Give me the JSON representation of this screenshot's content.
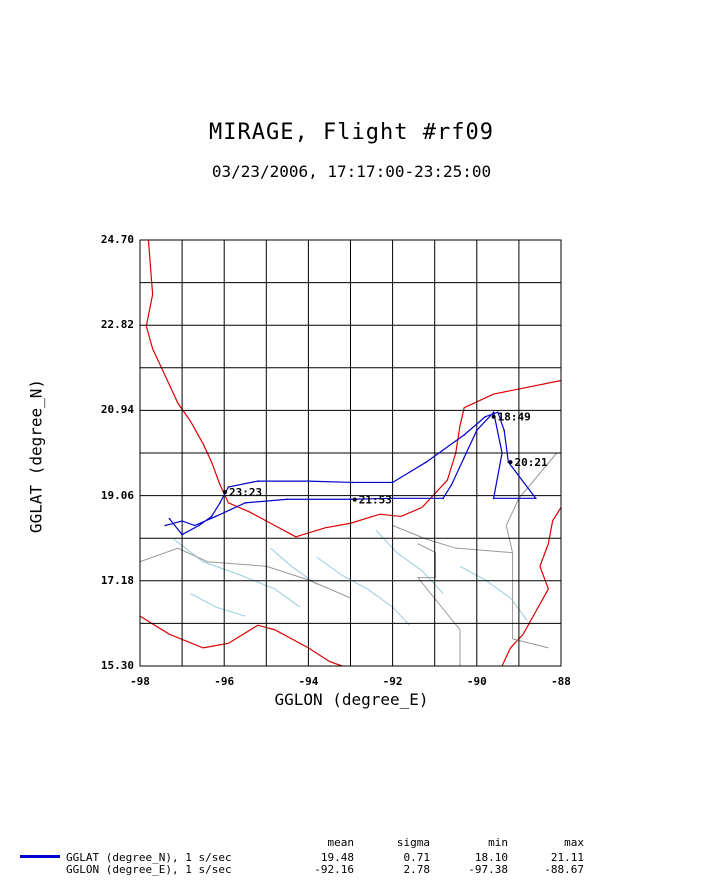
{
  "title": "MIRAGE, Flight #rf09",
  "subtitle": "03/23/2006, 17:17:00-23:25:00",
  "chart_data": {
    "type": "line",
    "xlabel": "GGLON (degree_E)",
    "ylabel": "GGLAT (degree_N)",
    "xlim": [
      -98,
      -88
    ],
    "ylim": [
      15.3,
      24.7
    ],
    "x_ticks": [
      "-98",
      "-96",
      "-94",
      "-92",
      "-90",
      "-88"
    ],
    "y_ticks": [
      "24.70",
      "22.82",
      "20.94",
      "19.06",
      "17.18",
      "15.30"
    ],
    "grid": true,
    "time_annotations": [
      {
        "label": "18:49",
        "x": -89.6,
        "y": 20.8
      },
      {
        "label": "20:21",
        "x": -89.2,
        "y": 19.8
      },
      {
        "label": "21:53",
        "x": -92.9,
        "y": 18.97
      },
      {
        "label": "23:23",
        "x": -95.98,
        "y": 19.14
      }
    ],
    "series": [
      {
        "name": "GGLAT (degree_N), 1 s/sec",
        "color": "#0000cc",
        "points": [
          [
            -97.3,
            18.55
          ],
          [
            -97.0,
            18.2
          ],
          [
            -96.6,
            18.4
          ],
          [
            -96.3,
            18.6
          ],
          [
            -96.1,
            18.9
          ],
          [
            -95.9,
            19.25
          ],
          [
            -95.2,
            19.38
          ],
          [
            -94.0,
            19.38
          ],
          [
            -92.95,
            19.35
          ],
          [
            -92.0,
            19.35
          ],
          [
            -91.2,
            19.8
          ],
          [
            -90.3,
            20.4
          ],
          [
            -89.8,
            20.8
          ],
          [
            -89.5,
            20.9
          ],
          [
            -89.35,
            20.5
          ],
          [
            -89.25,
            19.8
          ],
          [
            -88.6,
            19.0
          ],
          [
            -89.6,
            19.0
          ],
          [
            -89.4,
            20.0
          ],
          [
            -89.6,
            20.9
          ],
          [
            -90.0,
            20.5
          ],
          [
            -90.3,
            19.9
          ],
          [
            -90.6,
            19.3
          ],
          [
            -90.8,
            19.0
          ],
          [
            -92.0,
            19.0
          ],
          [
            -93.0,
            18.98
          ],
          [
            -94.5,
            18.98
          ],
          [
            -95.5,
            18.9
          ],
          [
            -96.2,
            18.6
          ],
          [
            -96.7,
            18.4
          ],
          [
            -97.0,
            18.5
          ],
          [
            -97.4,
            18.4
          ]
        ]
      },
      {
        "name": "GGLON (degree_E), 1 s/sec"
      }
    ]
  },
  "stats": {
    "headers": [
      "mean",
      "sigma",
      "min",
      "max"
    ],
    "rows": [
      {
        "label": "GGLAT (degree_N), 1 s/sec",
        "mean": "19.48",
        "sigma": "0.71",
        "min": "18.10",
        "max": "21.11"
      },
      {
        "label": "GGLON (degree_E), 1 s/sec",
        "mean": "-92.16",
        "sigma": "2.78",
        "min": "-97.38",
        "max": "-88.67"
      }
    ]
  },
  "colors": {
    "track": "#0000cc",
    "coastline": "#dd0000",
    "rivers": "#99ccdd",
    "borders": "#999999",
    "grid": "#000000"
  }
}
